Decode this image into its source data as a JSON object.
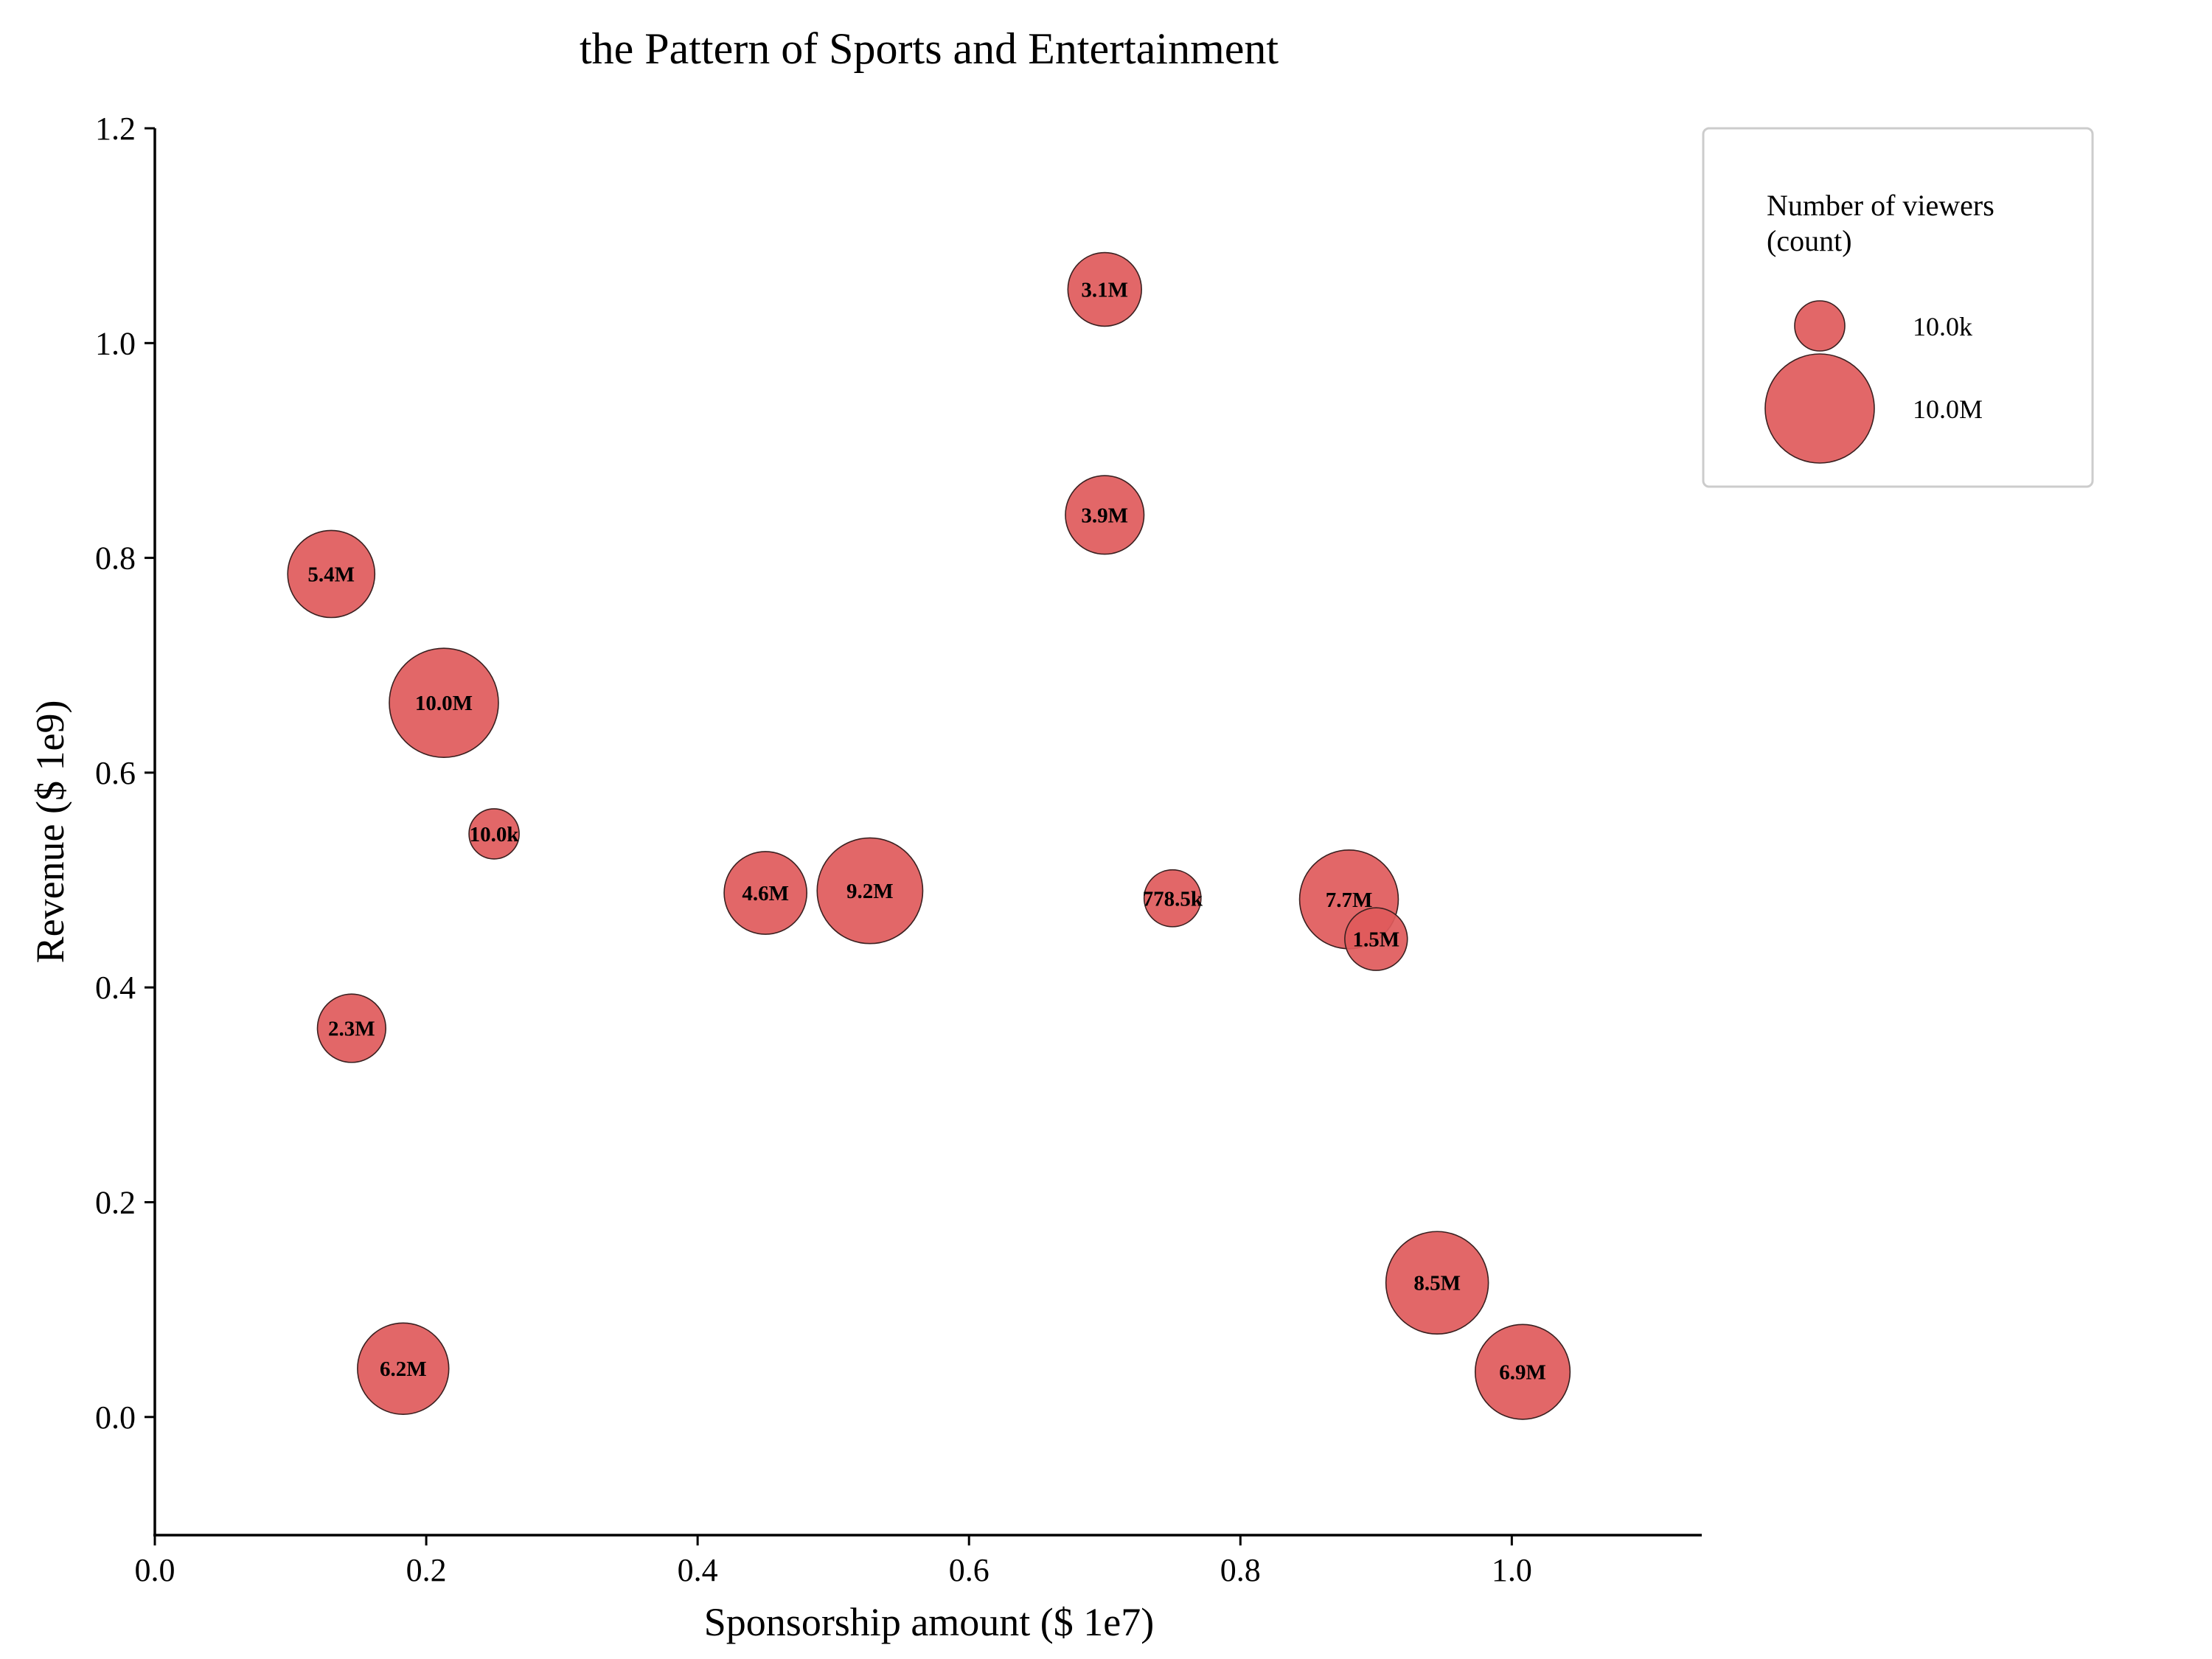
{
  "chart_data": {
    "type": "scatter",
    "title": "the Pattern of Sports and Entertainment",
    "xlabel": "Sponsorship amount ($ 1e7)",
    "ylabel": "Revenue ($ 1e9)",
    "xlim": [
      0.0,
      1.14
    ],
    "ylim": [
      -0.11,
      1.2
    ],
    "xticks": [
      "0.0",
      "0.2",
      "0.4",
      "0.6",
      "0.8",
      "1.0"
    ],
    "yticks": [
      "0.0",
      "0.2",
      "0.4",
      "0.6",
      "0.8",
      "1.0",
      "1.2"
    ],
    "grid": false,
    "color": "#e05a5b",
    "size_variable": "Number of viewers",
    "points": [
      {
        "x": 0.7,
        "y": 1.05,
        "size": 3100000,
        "label": "3.1M"
      },
      {
        "x": 0.7,
        "y": 0.84,
        "size": 3900000,
        "label": "3.9M"
      },
      {
        "x": 0.13,
        "y": 0.785,
        "size": 5400000,
        "label": "5.4M"
      },
      {
        "x": 0.213,
        "y": 0.665,
        "size": 10000000,
        "label": "10.0M"
      },
      {
        "x": 0.25,
        "y": 0.543,
        "size": 10000,
        "label": "10.0k"
      },
      {
        "x": 0.45,
        "y": 0.488,
        "size": 4600000,
        "label": "4.6M"
      },
      {
        "x": 0.527,
        "y": 0.49,
        "size": 9200000,
        "label": "9.2M"
      },
      {
        "x": 0.75,
        "y": 0.483,
        "size": 778500,
        "label": "778.5k"
      },
      {
        "x": 0.88,
        "y": 0.482,
        "size": 7700000,
        "label": "7.7M"
      },
      {
        "x": 0.9,
        "y": 0.445,
        "size": 1500000,
        "label": "1.5M"
      },
      {
        "x": 0.145,
        "y": 0.362,
        "size": 2300000,
        "label": "2.3M"
      },
      {
        "x": 0.183,
        "y": 0.045,
        "size": 6200000,
        "label": "6.2M"
      },
      {
        "x": 0.945,
        "y": 0.125,
        "size": 8500000,
        "label": "8.5M"
      },
      {
        "x": 1.008,
        "y": 0.042,
        "size": 6900000,
        "label": "6.9M"
      }
    ],
    "legend": {
      "title_line1": "Number of viewers",
      "title_line2": "(count)",
      "placement": "top-right, outside plot",
      "entries": [
        {
          "label": "10.0k",
          "size": 10000
        },
        {
          "label": "10.0M",
          "size": 10000000
        }
      ]
    }
  }
}
